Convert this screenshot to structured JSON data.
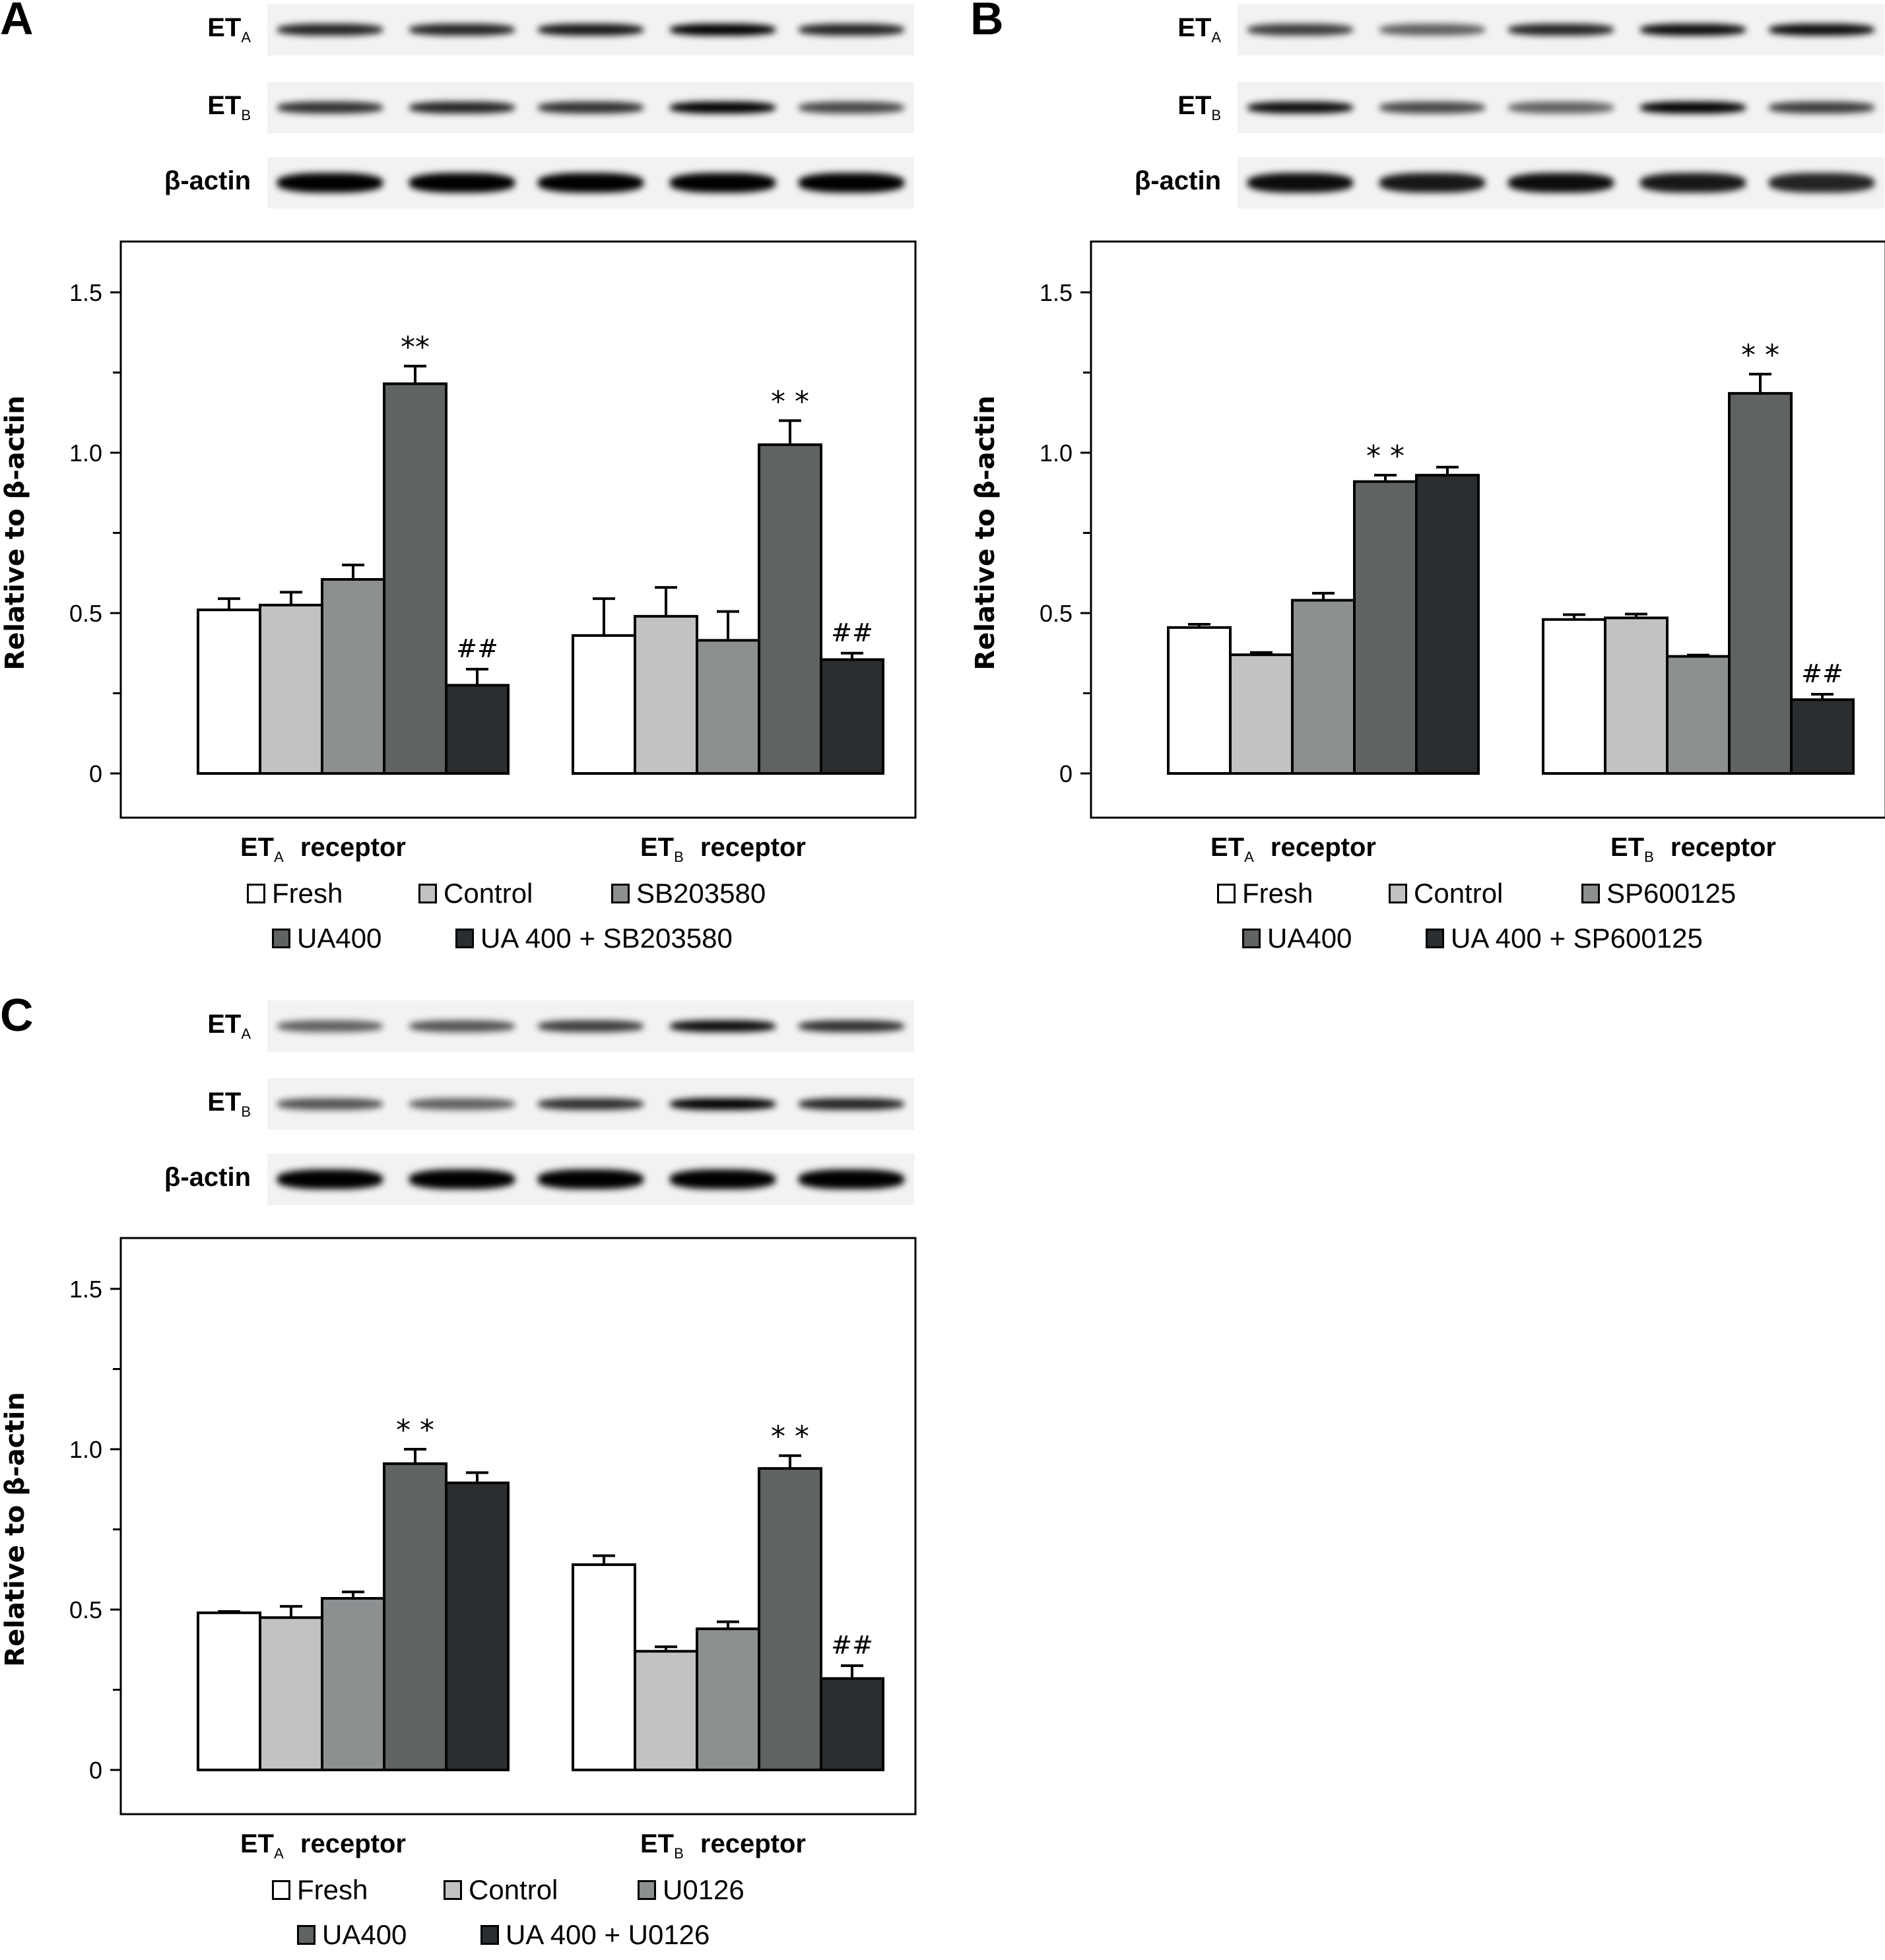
{
  "colors": {
    "fresh": "#ffffff",
    "control": "#c1c3c2",
    "inhibitor": "#8d9091",
    "ua400": "#5f6364",
    "combo": "#2b2e30",
    "stroke": "#000000"
  },
  "panels": [
    {
      "letter": "A",
      "blots": [
        {
          "label": "ET",
          "sub": "A",
          "intensity": [
            0.85,
            0.85,
            0.9,
            1.0,
            0.85
          ]
        },
        {
          "label": "ET",
          "sub": "B",
          "intensity": [
            0.8,
            0.85,
            0.8,
            1.0,
            0.7
          ]
        },
        {
          "label": "β-actin",
          "sub": "",
          "intensity": [
            1,
            1,
            1,
            1,
            1
          ]
        }
      ],
      "legend": [
        "Fresh",
        "Control",
        "SB203580",
        "UA400",
        "UA 400 + SB203580"
      ]
    },
    {
      "letter": "B",
      "blots": [
        {
          "label": "ET",
          "sub": "A",
          "intensity": [
            0.75,
            0.6,
            0.85,
            0.95,
            0.95
          ]
        },
        {
          "label": "ET",
          "sub": "B",
          "intensity": [
            0.95,
            0.7,
            0.6,
            1.0,
            0.75
          ]
        },
        {
          "label": "β-actin",
          "sub": "",
          "intensity": [
            0.95,
            0.9,
            0.95,
            0.9,
            0.85
          ]
        }
      ],
      "legend": [
        "Fresh",
        "Control",
        "SP600125",
        "UA400",
        "UA 400 + SP600125"
      ]
    },
    {
      "letter": "C",
      "blots": [
        {
          "label": "ET",
          "sub": "A",
          "intensity": [
            0.6,
            0.65,
            0.75,
            0.95,
            0.8
          ]
        },
        {
          "label": "ET",
          "sub": "B",
          "intensity": [
            0.65,
            0.6,
            0.8,
            1.0,
            0.85
          ]
        },
        {
          "label": "β-actin",
          "sub": "",
          "intensity": [
            1,
            1,
            1,
            1,
            1
          ]
        }
      ],
      "legend": [
        "Fresh",
        "Control",
        "U0126",
        "UA400",
        "UA 400 + U0126"
      ]
    }
  ],
  "group_suffix": "receptor",
  "chart_data": [
    {
      "type": "bar",
      "panel": "A",
      "ylabel": "Relative to β-actin",
      "ylim": [
        -0.15,
        1.65
      ],
      "yticks": [
        0,
        0.5,
        1.0,
        1.5
      ],
      "ytick_labels": [
        "0",
        "0.5",
        "1.0",
        "1.5"
      ],
      "minor_ticks": [
        0.25,
        0.75,
        1.25
      ],
      "categories": [
        {
          "main": "ET",
          "sub": "A"
        },
        {
          "main": "ET",
          "sub": "B"
        }
      ],
      "series": [
        {
          "name": "Fresh",
          "values": [
            0.51,
            0.43
          ],
          "errors": [
            0.035,
            0.115
          ]
        },
        {
          "name": "Control",
          "values": [
            0.525,
            0.49
          ],
          "errors": [
            0.04,
            0.09
          ]
        },
        {
          "name": "SB203580",
          "values": [
            0.605,
            0.415
          ],
          "errors": [
            0.045,
            0.09
          ]
        },
        {
          "name": "UA400",
          "values": [
            1.215,
            1.025
          ],
          "errors": [
            0.055,
            0.075
          ]
        },
        {
          "name": "UA 400 + SB203580",
          "values": [
            0.275,
            0.355
          ],
          "errors": [
            0.05,
            0.02
          ]
        }
      ],
      "annotations": [
        {
          "series": 3,
          "group": 0,
          "text": "**"
        },
        {
          "series": 3,
          "group": 1,
          "text": "* *"
        },
        {
          "series": 4,
          "group": 0,
          "text": "##"
        },
        {
          "series": 4,
          "group": 1,
          "text": "##"
        }
      ]
    },
    {
      "type": "bar",
      "panel": "B",
      "ylabel": "Relative to β-actin",
      "ylim": [
        -0.15,
        1.65
      ],
      "yticks": [
        0,
        0.5,
        1.0,
        1.5
      ],
      "ytick_labels": [
        "0",
        "0.5",
        "1.0",
        "1.5"
      ],
      "minor_ticks": [
        0.25,
        0.75,
        1.25
      ],
      "categories": [
        {
          "main": "ET",
          "sub": "A"
        },
        {
          "main": "ET",
          "sub": "B"
        }
      ],
      "series": [
        {
          "name": "Fresh",
          "values": [
            0.455,
            0.48
          ],
          "errors": [
            0.01,
            0.015
          ]
        },
        {
          "name": "Control",
          "values": [
            0.37,
            0.485
          ],
          "errors": [
            0.007,
            0.012
          ]
        },
        {
          "name": "SP600125",
          "values": [
            0.54,
            0.365
          ],
          "errors": [
            0.022,
            0.004
          ]
        },
        {
          "name": "UA400",
          "values": [
            0.91,
            1.185
          ],
          "errors": [
            0.02,
            0.06
          ]
        },
        {
          "name": "UA 400 + SP600125",
          "values": [
            0.93,
            0.23
          ],
          "errors": [
            0.025,
            0.017
          ]
        }
      ],
      "annotations": [
        {
          "series": 3,
          "group": 0,
          "text": "* *"
        },
        {
          "series": 3,
          "group": 1,
          "text": "* *"
        },
        {
          "series": 4,
          "group": 1,
          "text": "##"
        }
      ]
    },
    {
      "type": "bar",
      "panel": "C",
      "ylabel": "Relative to β-actin",
      "ylim": [
        -0.15,
        1.65
      ],
      "yticks": [
        0,
        0.5,
        1.0,
        1.5
      ],
      "ytick_labels": [
        "0",
        "0.5",
        "1.0",
        "1.5"
      ],
      "minor_ticks": [
        0.25,
        0.75,
        1.25
      ],
      "categories": [
        {
          "main": "ET",
          "sub": "A"
        },
        {
          "main": "ET",
          "sub": "B"
        }
      ],
      "series": [
        {
          "name": "Fresh",
          "values": [
            0.49,
            0.64
          ],
          "errors": [
            0.004,
            0.028
          ]
        },
        {
          "name": "Control",
          "values": [
            0.475,
            0.37
          ],
          "errors": [
            0.035,
            0.014
          ]
        },
        {
          "name": "U0126",
          "values": [
            0.535,
            0.44
          ],
          "errors": [
            0.02,
            0.022
          ]
        },
        {
          "name": "UA400",
          "values": [
            0.955,
            0.94
          ],
          "errors": [
            0.045,
            0.04
          ]
        },
        {
          "name": "UA 400 + U0126",
          "values": [
            0.895,
            0.285
          ],
          "errors": [
            0.032,
            0.04
          ]
        }
      ],
      "annotations": [
        {
          "series": 3,
          "group": 0,
          "text": "* *"
        },
        {
          "series": 3,
          "group": 1,
          "text": "* *"
        },
        {
          "series": 4,
          "group": 1,
          "text": "##"
        }
      ]
    }
  ]
}
